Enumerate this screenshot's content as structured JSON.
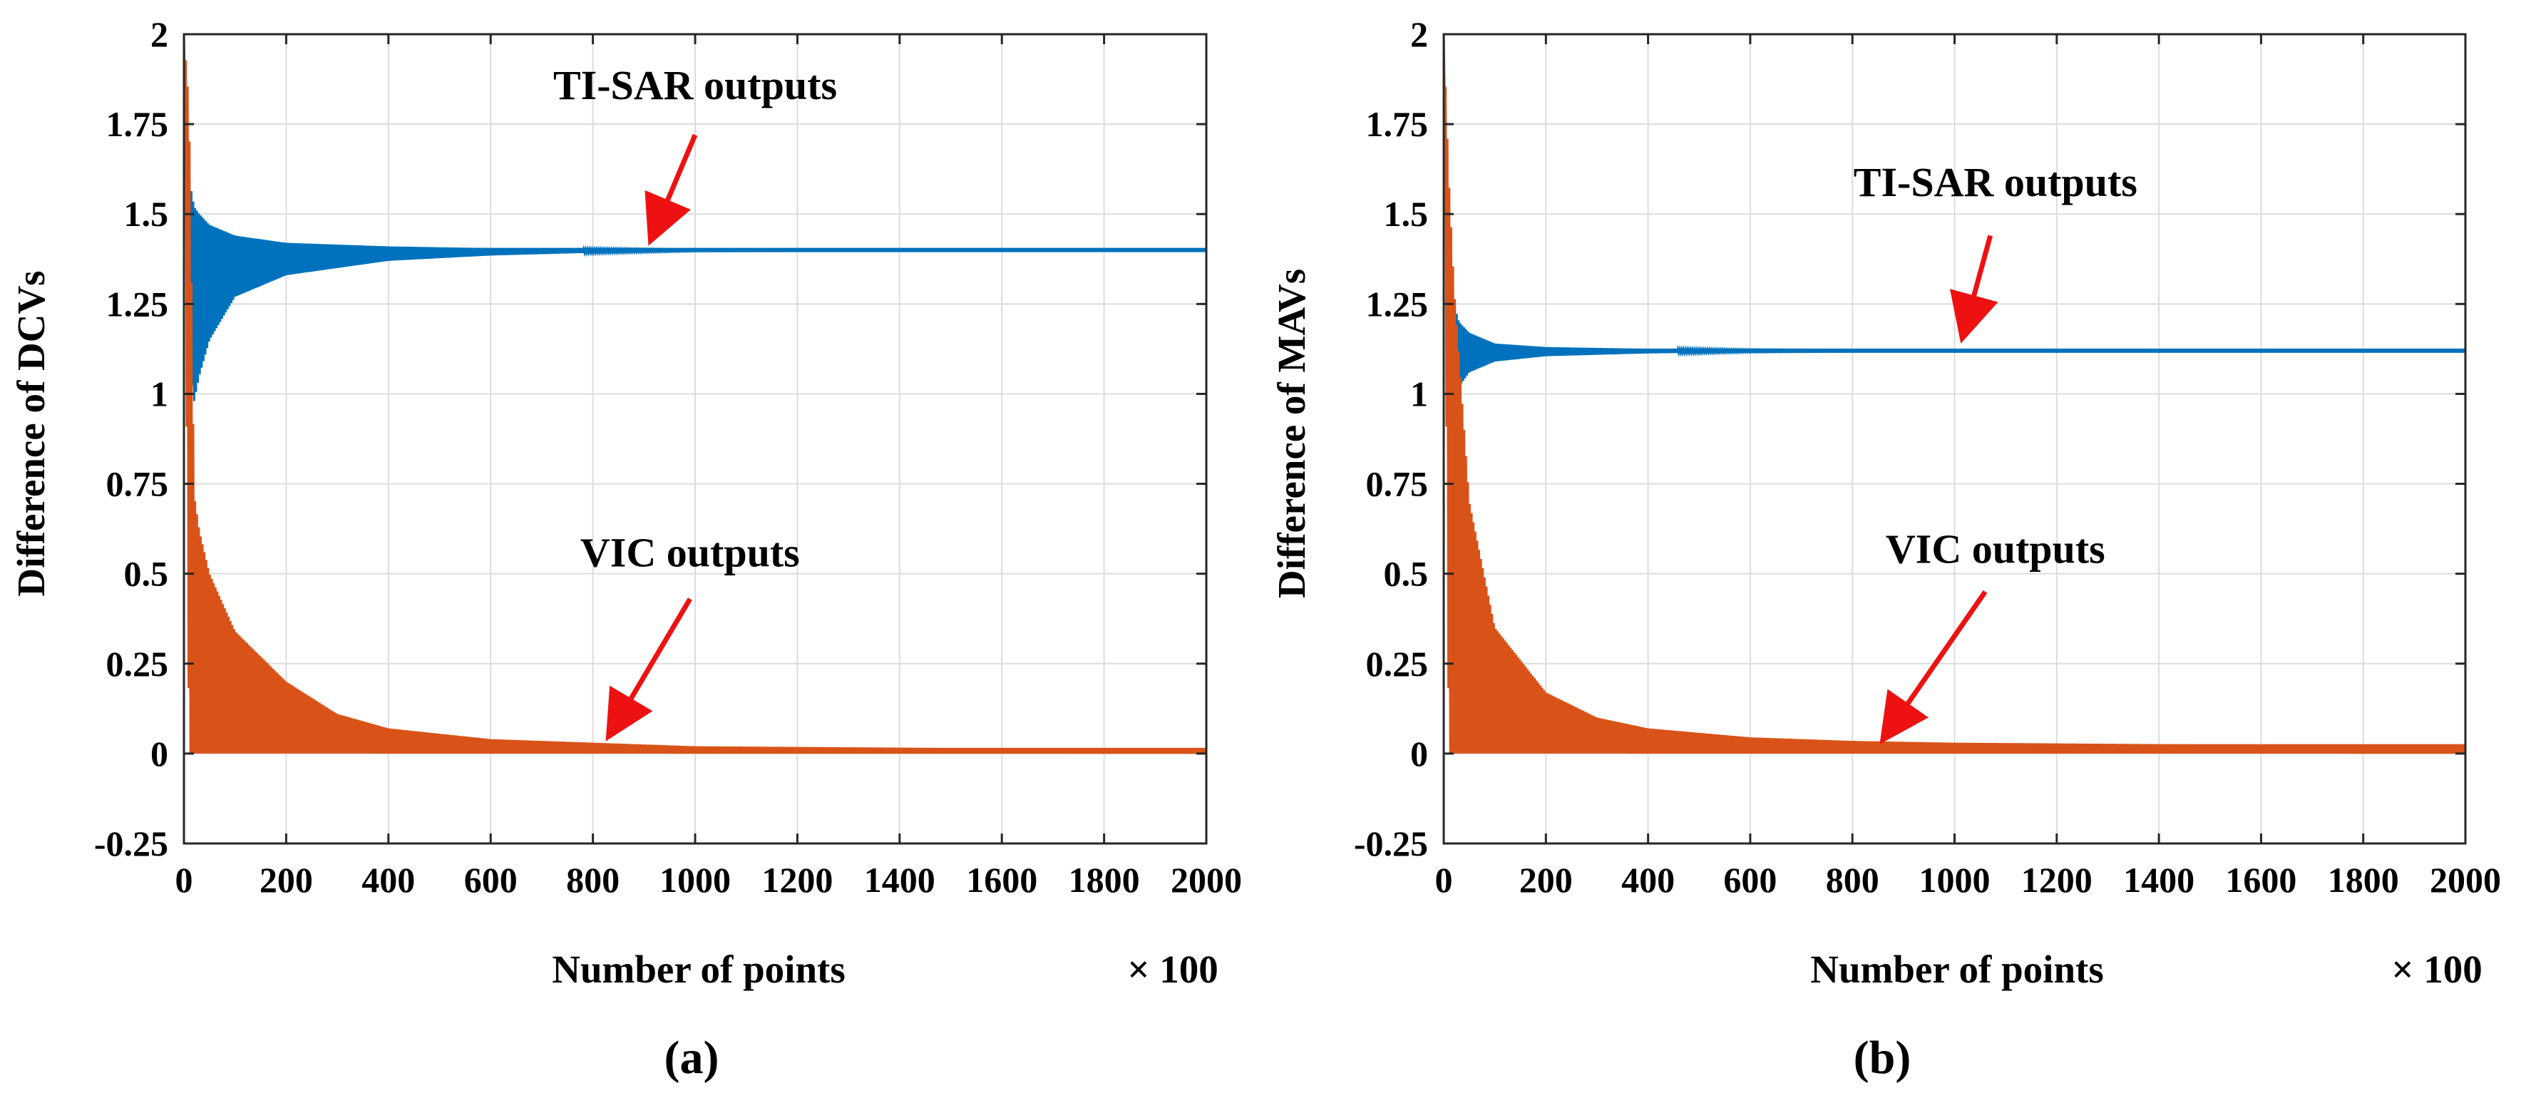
{
  "figure": {
    "caption_a": "(a)",
    "caption_b": "(b)"
  },
  "chart_data": [
    {
      "type": "line",
      "panel": "(a)",
      "xlabel": "Number of points",
      "x_multiplier": "× 100",
      "ylabel": "Difference of DCVs",
      "xlim": [
        0,
        2000
      ],
      "ylim": [
        -0.25,
        2
      ],
      "xticks": [
        0,
        200,
        400,
        600,
        800,
        1000,
        1200,
        1400,
        1600,
        1800,
        2000
      ],
      "xtick_labels": [
        "0",
        "200",
        "400",
        "600",
        "800",
        "1000",
        "1200",
        "1400",
        "1600",
        "1800",
        "2000"
      ],
      "yticks": [
        -0.25,
        0,
        0.25,
        0.5,
        0.75,
        1,
        1.25,
        1.5,
        1.75,
        2
      ],
      "ytick_labels": [
        "-0.25",
        "0",
        "0.25",
        "0.5",
        "0.75",
        "1",
        "1.25",
        "1.5",
        "1.75",
        "2"
      ],
      "grid": true,
      "series": [
        {
          "name": "TI-SAR outputs",
          "color": "#0072BD",
          "behavior": "damped oscillation converging to final value",
          "start_value": 2.0,
          "final_value": 1.4,
          "x": [
            0,
            10,
            20,
            30,
            50,
            100,
            200,
            400,
            600,
            800,
            1000,
            1500,
            2000
          ],
          "upper": [
            2.0,
            1.6,
            1.52,
            1.5,
            1.47,
            1.44,
            1.42,
            1.41,
            1.405,
            1.402,
            1.4,
            1.4,
            1.4
          ],
          "lower": [
            2.0,
            1.1,
            0.98,
            1.05,
            1.15,
            1.27,
            1.33,
            1.37,
            1.385,
            1.393,
            1.397,
            1.399,
            1.4
          ]
        },
        {
          "name": "VIC outputs",
          "color": "#D95319",
          "behavior": "decaying oscillation toward zero",
          "start_value": 2.0,
          "final_value": 0.01,
          "x": [
            0,
            10,
            20,
            30,
            50,
            100,
            200,
            300,
            400,
            600,
            800,
            1000,
            1500,
            2000
          ],
          "upper": [
            2.0,
            1.8,
            0.72,
            0.62,
            0.5,
            0.34,
            0.2,
            0.11,
            0.07,
            0.04,
            0.03,
            0.02,
            0.015,
            0.01
          ],
          "lower": [
            2.0,
            0.0,
            0.0,
            0.0,
            0.0,
            0.0,
            0.0,
            0.0,
            0.0,
            0.0,
            0.0,
            0.0,
            0.0,
            0.0
          ]
        }
      ],
      "annotations": [
        {
          "text": "TI-SAR outputs",
          "label_at": [
            1000,
            1.82
          ],
          "arrow_from": [
            1000,
            1.72
          ],
          "arrow_to": [
            920,
            1.45
          ]
        },
        {
          "text": "VIC outputs",
          "label_at": [
            990,
            0.52
          ],
          "arrow_from": [
            990,
            0.43
          ],
          "arrow_to": [
            840,
            0.07
          ]
        }
      ]
    },
    {
      "type": "line",
      "panel": "(b)",
      "xlabel": "Number of points",
      "x_multiplier": "× 100",
      "ylabel": "Difference of MAVs",
      "xlim": [
        0,
        2000
      ],
      "ylim": [
        -0.25,
        2
      ],
      "xticks": [
        0,
        200,
        400,
        600,
        800,
        1000,
        1200,
        1400,
        1600,
        1800,
        2000
      ],
      "xtick_labels": [
        "0",
        "200",
        "400",
        "600",
        "800",
        "1000",
        "1200",
        "1400",
        "1600",
        "1800",
        "2000"
      ],
      "yticks": [
        -0.25,
        0,
        0.25,
        0.5,
        0.75,
        1,
        1.25,
        1.5,
        1.75,
        2
      ],
      "ytick_labels": [
        "-0.25",
        "0",
        "0.25",
        "0.5",
        "0.75",
        "1",
        "1.25",
        "1.5",
        "1.75",
        "2"
      ],
      "grid": true,
      "series": [
        {
          "name": "TI-SAR outputs",
          "color": "#0072BD",
          "behavior": "damped oscillation converging to final value",
          "start_value": 2.0,
          "final_value": 1.12,
          "x": [
            0,
            10,
            20,
            30,
            50,
            100,
            200,
            400,
            600,
            1000,
            2000
          ],
          "upper": [
            2.0,
            1.4,
            1.25,
            1.2,
            1.17,
            1.14,
            1.13,
            1.125,
            1.122,
            1.12,
            1.12
          ],
          "lower": [
            2.0,
            0.95,
            0.96,
            1.02,
            1.06,
            1.09,
            1.105,
            1.113,
            1.117,
            1.12,
            1.12
          ]
        },
        {
          "name": "VIC outputs",
          "color": "#D95319",
          "behavior": "decaying oscillation toward zero",
          "start_value": 2.0,
          "final_value": 0.02,
          "x": [
            0,
            10,
            20,
            30,
            50,
            100,
            200,
            300,
            400,
            600,
            800,
            1000,
            1500,
            2000
          ],
          "upper": [
            2.0,
            1.6,
            1.3,
            1.1,
            0.7,
            0.35,
            0.17,
            0.1,
            0.07,
            0.045,
            0.035,
            0.03,
            0.025,
            0.02
          ],
          "lower": [
            2.0,
            0.0,
            0.0,
            0.0,
            0.0,
            0.0,
            0.0,
            0.0,
            0.0,
            0.0,
            0.0,
            0.0,
            0.0,
            0.0
          ]
        }
      ],
      "annotations": [
        {
          "text": "TI-SAR outputs",
          "label_at": [
            1080,
            1.55
          ],
          "arrow_from": [
            1070,
            1.44
          ],
          "arrow_to": [
            1020,
            1.18
          ]
        },
        {
          "text": "VIC outputs",
          "label_at": [
            1080,
            0.53
          ],
          "arrow_from": [
            1060,
            0.45
          ],
          "arrow_to": [
            870,
            0.06
          ]
        }
      ]
    }
  ]
}
